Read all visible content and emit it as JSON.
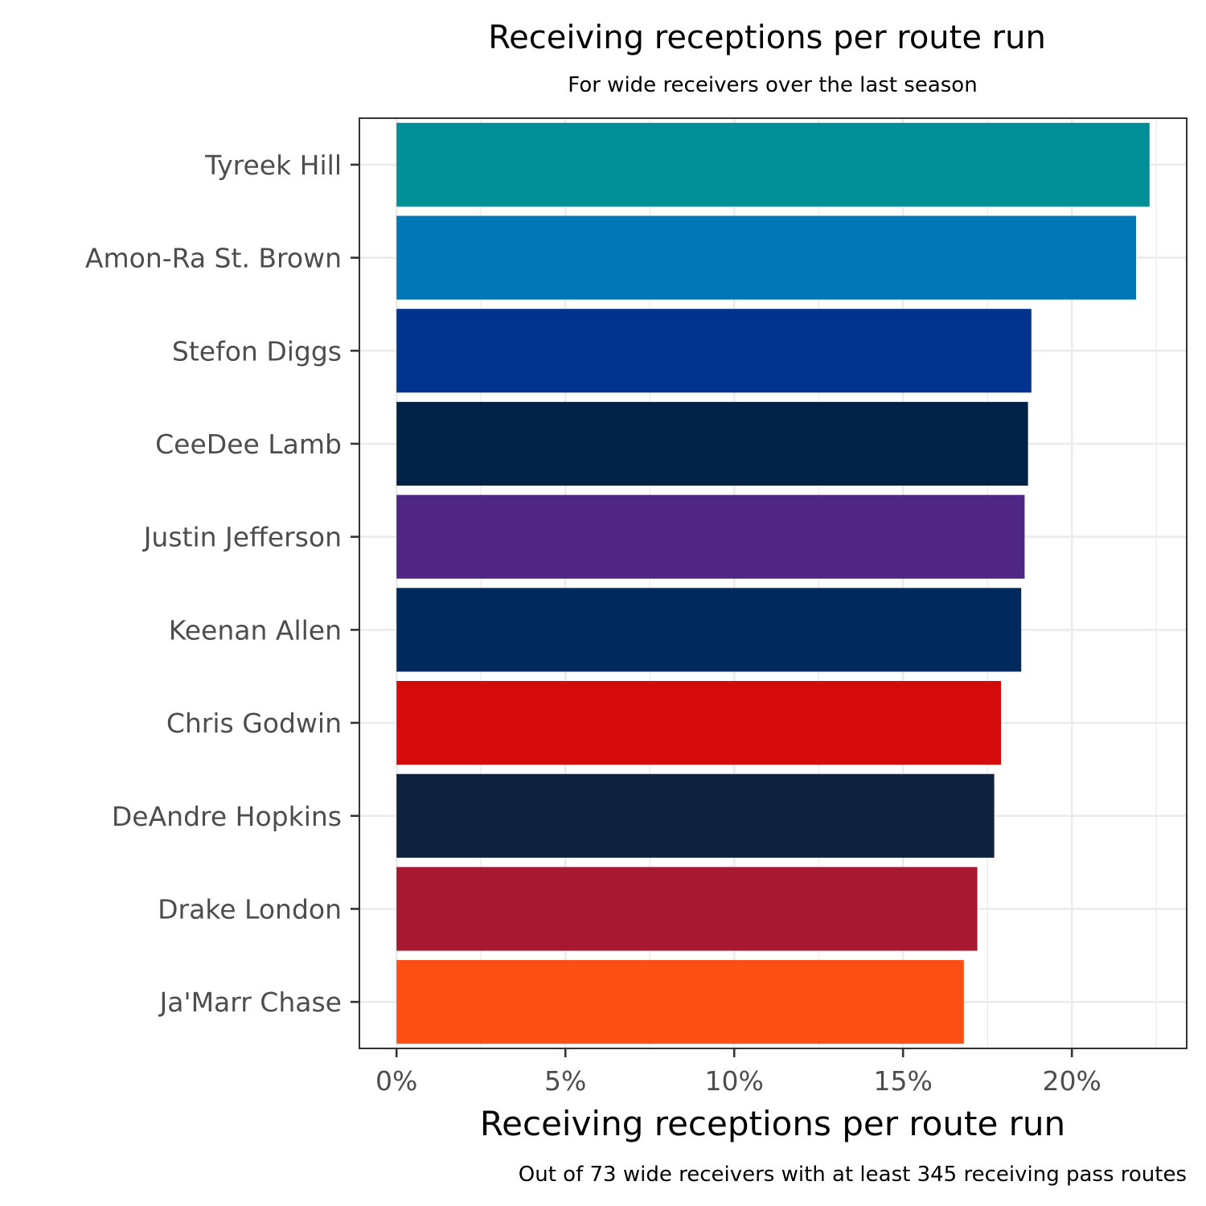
{
  "chart_data": {
    "type": "bar",
    "orientation": "horizontal",
    "title": "Receiving receptions per route run",
    "subtitle": "For wide receivers over the last season",
    "xlabel": "Receiving receptions per route run",
    "ylabel": "",
    "caption": "Out of 73 wide receivers with at least 345 receiving pass routes",
    "xlim": [
      -0.011,
      0.234
    ],
    "x_ticks": [
      0,
      0.05,
      0.1,
      0.15,
      0.2
    ],
    "x_tick_labels": [
      "0%",
      "5%",
      "10%",
      "15%",
      "20%"
    ],
    "grid": true,
    "legend": "none",
    "categories": [
      "Tyreek Hill",
      "Amon-Ra St. Brown",
      "Stefon Diggs",
      "CeeDee Lamb",
      "Justin Jefferson",
      "Keenan Allen",
      "Chris Godwin",
      "DeAndre Hopkins",
      "Drake London",
      "Ja'Marr Chase"
    ],
    "values": [
      0.223,
      0.219,
      0.188,
      0.187,
      0.186,
      0.185,
      0.179,
      0.177,
      0.172,
      0.168
    ],
    "colors": [
      "#008E97",
      "#0076B6",
      "#00338D",
      "#002244",
      "#4F2683",
      "#002A5E",
      "#D50A0A",
      "#0E2240",
      "#A71930",
      "#FB4F14"
    ]
  }
}
